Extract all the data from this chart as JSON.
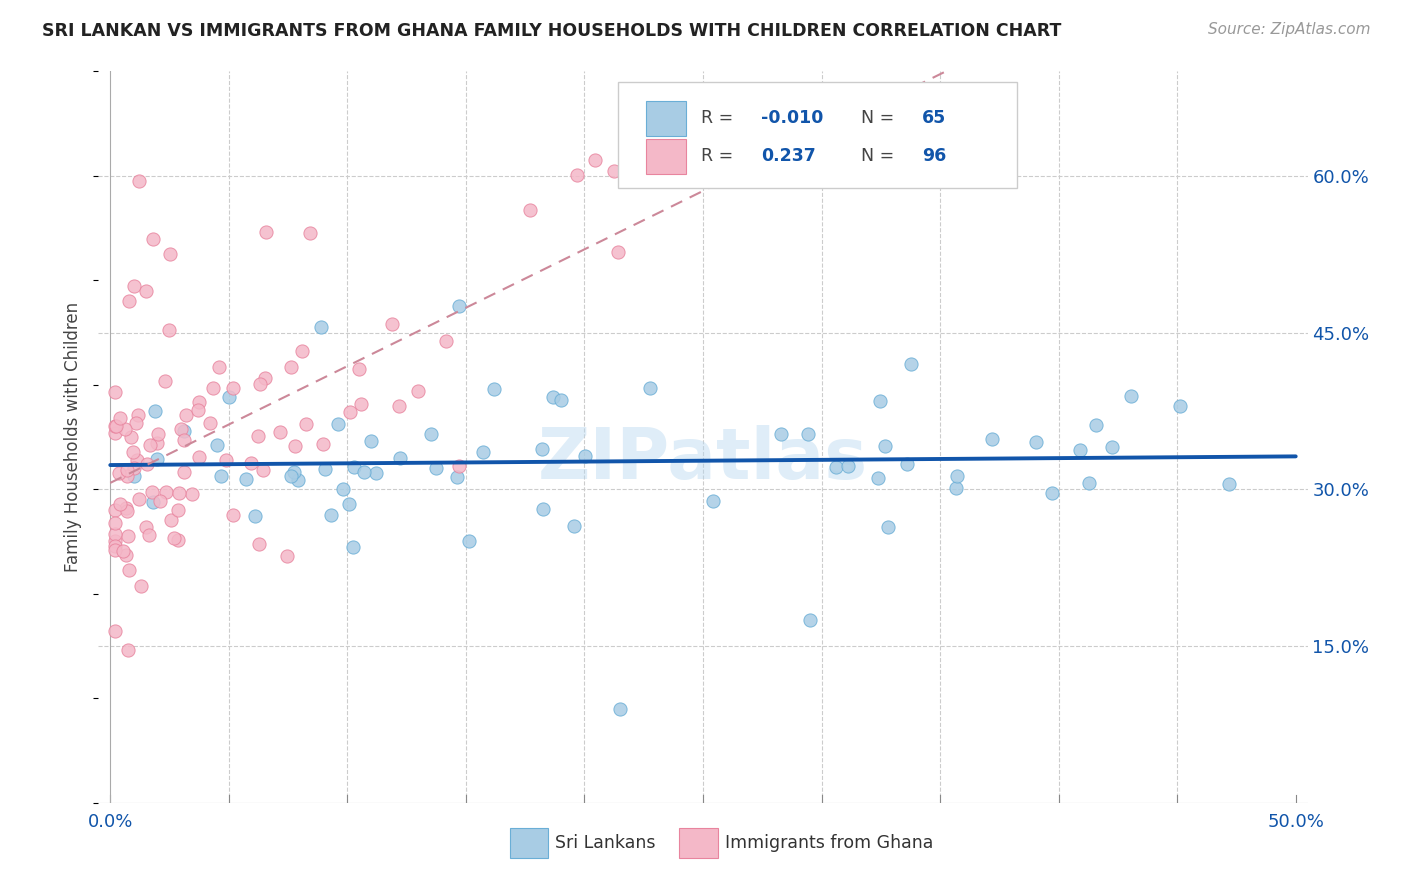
{
  "title": "SRI LANKAN VS IMMIGRANTS FROM GHANA FAMILY HOUSEHOLDS WITH CHILDREN CORRELATION CHART",
  "source": "Source: ZipAtlas.com",
  "ylabel": "Family Households with Children",
  "xlim": [
    0.0,
    0.5
  ],
  "ylim": [
    0.0,
    0.7
  ],
  "x_ticks": [
    0.0,
    0.05,
    0.1,
    0.15,
    0.2,
    0.25,
    0.3,
    0.35,
    0.4,
    0.45,
    0.5
  ],
  "y_ticks_right": [
    0.15,
    0.3,
    0.45,
    0.6
  ],
  "y_tick_labels_right": [
    "15.0%",
    "30.0%",
    "45.0%",
    "60.0%"
  ],
  "sri_lankan_R": -0.01,
  "sri_lankan_N": 65,
  "ghana_R": 0.237,
  "ghana_N": 96,
  "color_blue": "#a8cce4",
  "color_blue_edge": "#6aaed6",
  "color_pink": "#f4b8c8",
  "color_pink_edge": "#e8849e",
  "line_blue": "#1155aa",
  "line_pink": "#cc8899",
  "legend_label_blue": "Sri Lankans",
  "legend_label_pink": "Immigrants from Ghana",
  "watermark": "ZIPatlas",
  "grid_color": "#cccccc",
  "title_color": "#222222",
  "source_color": "#999999",
  "axis_label_color": "#444444",
  "tick_color_blue": "#1155aa",
  "r_label_color": "#1155aa",
  "legend_r_text_color": "#444444"
}
